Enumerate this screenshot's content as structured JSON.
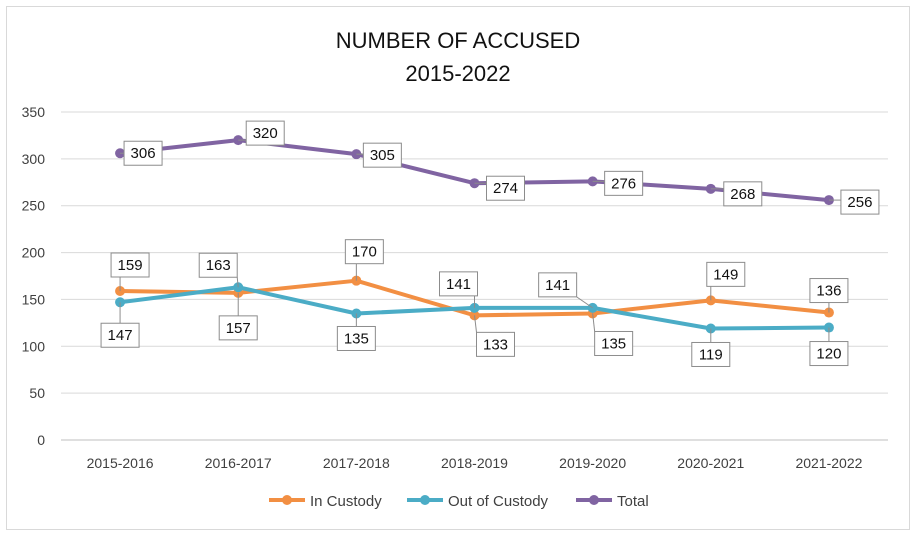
{
  "chart_data": {
    "type": "line",
    "title": "NUMBER OF ACCUSED",
    "subtitle": "2015-2022",
    "xlabel": "",
    "ylabel": "",
    "categories": [
      "2015-2016",
      "2016-2017",
      "2017-2018",
      "2018-2019",
      "2019-2020",
      "2020-2021",
      "2021-2022"
    ],
    "ylim": [
      0,
      350
    ],
    "yticks": [
      0,
      50,
      100,
      150,
      200,
      250,
      300,
      350
    ],
    "grid": true,
    "legend_position": "bottom",
    "series": [
      {
        "name": "In Custody",
        "color": "#f28f43",
        "values": [
          159,
          157,
          170,
          133,
          135,
          149,
          136
        ]
      },
      {
        "name": "Out of Custody",
        "color": "#4bacc6",
        "values": [
          147,
          163,
          135,
          141,
          141,
          119,
          120
        ]
      },
      {
        "name": "Total",
        "color": "#8064a2",
        "values": [
          306,
          320,
          305,
          274,
          276,
          268,
          256
        ]
      }
    ]
  }
}
